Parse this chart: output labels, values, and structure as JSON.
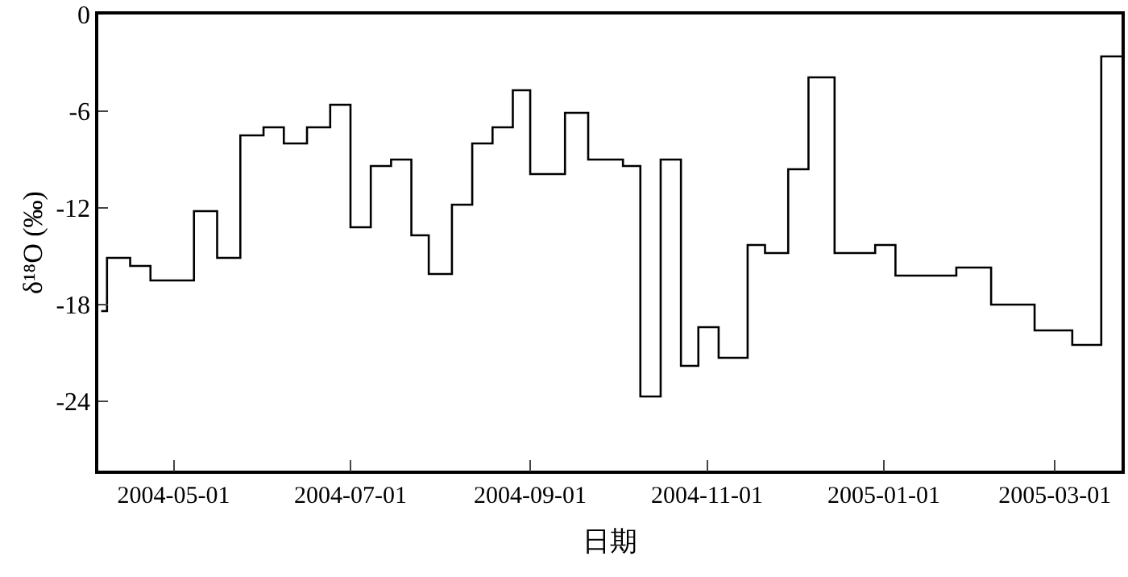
{
  "chart_data": {
    "type": "step",
    "xlabel": "日期",
    "ylabel": "δ¹⁸O (‰)",
    "color": "#000000",
    "x": [
      "2004-04-06",
      "2004-04-08",
      "2004-04-16",
      "2004-04-23",
      "2004-05-08",
      "2004-05-16",
      "2004-05-24",
      "2004-06-01",
      "2004-06-08",
      "2004-06-16",
      "2004-06-24",
      "2004-07-01",
      "2004-07-08",
      "2004-07-15",
      "2004-07-22",
      "2004-07-28",
      "2004-08-05",
      "2004-08-12",
      "2004-08-19",
      "2004-08-26",
      "2004-09-01",
      "2004-09-13",
      "2004-09-21",
      "2004-10-03",
      "2004-10-09",
      "2004-10-16",
      "2004-10-23",
      "2004-10-29",
      "2004-11-05",
      "2004-11-15",
      "2004-11-21",
      "2004-11-29",
      "2004-12-06",
      "2004-12-15",
      "2004-12-29",
      "2005-01-05",
      "2005-01-26",
      "2005-02-07",
      "2005-02-22",
      "2005-03-07",
      "2005-03-17",
      "2005-03-24"
    ],
    "values": [
      -18.4,
      -15.1,
      -15.6,
      -16.5,
      -12.2,
      -15.1,
      -7.5,
      -7.0,
      -8.0,
      -7.0,
      -5.6,
      -13.2,
      -9.4,
      -9.0,
      -13.7,
      -16.1,
      -11.8,
      -8.0,
      -7.0,
      -4.7,
      -9.9,
      -6.1,
      -9.0,
      -9.4,
      -23.7,
      -9.0,
      -21.8,
      -19.4,
      -21.3,
      -14.3,
      -14.8,
      -9.6,
      -3.9,
      -14.8,
      -14.3,
      -16.2,
      -15.7,
      -18.0,
      -19.6,
      -20.5,
      -2.6,
      -2.6
    ],
    "xlim": [
      "2004-04-05",
      "2005-03-24"
    ],
    "xticks": [
      {
        "value": "2004-05-01",
        "label": "2004-05-01"
      },
      {
        "value": "2004-07-01",
        "label": "2004-07-01"
      },
      {
        "value": "2004-09-01",
        "label": "2004-09-01"
      },
      {
        "value": "2004-11-01",
        "label": "2004-11-01"
      },
      {
        "value": "2005-01-01",
        "label": "2005-01-01"
      },
      {
        "value": "2005-03-01",
        "label": "2005-03-01"
      }
    ],
    "ylim": [
      -28.3,
      0
    ],
    "yticks": [
      0,
      -6,
      -12,
      -18,
      -24
    ]
  }
}
